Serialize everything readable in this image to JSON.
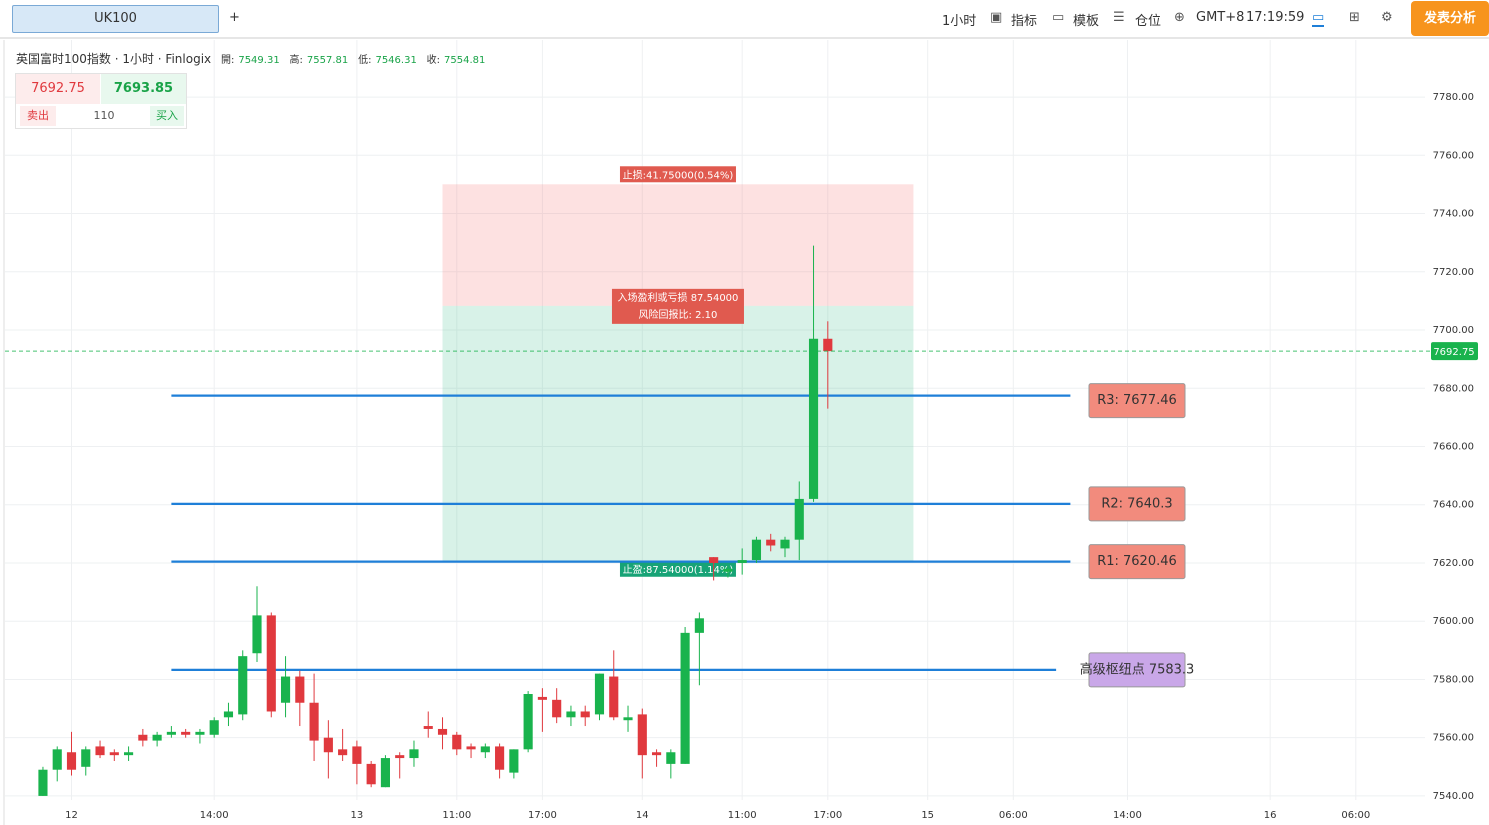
{
  "toolbar": {
    "tab": "UK100",
    "add": "+",
    "interval": "1小时",
    "indicators": "指标",
    "templates": "模板",
    "positions": "仓位",
    "timezone": "GMT+8",
    "clock": "17:19:59",
    "publish": "发表分析"
  },
  "legend": {
    "symbol": "英国富时100指数 · 1小时 · Finlogix",
    "open_label": "開:",
    "open": 7549.31,
    "high_label": "高:",
    "high": 7557.81,
    "low_label": "低:",
    "low": 7546.31,
    "close_label": "收:",
    "close": 7554.81
  },
  "trade_panel": {
    "sell_price": 7692.75,
    "buy_price": 7693.85,
    "sell": "卖出",
    "quantity": 110,
    "buy": "买入"
  },
  "chart_data": {
    "type": "candlestick",
    "x": [
      0,
      1,
      2,
      3,
      4,
      5,
      6,
      7,
      8,
      9,
      10,
      11,
      12,
      13,
      14,
      15,
      16,
      17,
      18,
      19,
      20,
      21,
      22,
      23,
      24,
      25,
      26,
      27,
      28,
      29,
      30,
      31,
      32,
      33,
      34,
      35,
      36,
      37,
      38,
      39,
      40,
      41,
      42,
      43,
      44,
      45,
      46,
      47,
      48,
      49,
      50,
      51,
      52,
      53,
      54,
      55
    ],
    "open": [
      7540,
      7549,
      7555,
      7550,
      7557,
      7555,
      7554,
      7561,
      7559,
      7561,
      7562,
      7561,
      7561,
      7567,
      7568,
      7589,
      7602,
      7572,
      7581,
      7572,
      7560,
      7556,
      7557,
      7551,
      7543,
      7554,
      7553,
      7564,
      7563,
      7561,
      7557,
      7555,
      7557,
      7548,
      7556,
      7574,
      7573,
      7567,
      7569,
      7568,
      7581,
      7566,
      7568,
      7555,
      7551,
      7551,
      7596,
      7622,
      7617,
      7620,
      7621,
      7628,
      7625,
      7628,
      7642,
      7697
    ],
    "high": [
      7550,
      7557,
      7562,
      7557,
      7559,
      7556,
      7557,
      7563,
      7562,
      7564,
      7563,
      7563,
      7567,
      7572,
      7590,
      7612,
      7603,
      7588,
      7583,
      7582,
      7566,
      7563,
      7559,
      7552,
      7554,
      7555,
      7559,
      7569,
      7567,
      7562,
      7558,
      7558,
      7558,
      7556,
      7576,
      7577,
      7577,
      7571,
      7571,
      7582,
      7590,
      7571,
      7570,
      7556,
      7556,
      7598,
      7603,
      7622,
      7619,
      7625,
      7629,
      7630,
      7629,
      7648,
      7729,
      7703
    ],
    "low": [
      7540,
      7545,
      7547,
      7547,
      7553,
      7552,
      7552,
      7557,
      7557,
      7560,
      7560,
      7558,
      7560,
      7564,
      7566,
      7586,
      7567,
      7567,
      7564,
      7552,
      7546,
      7552,
      7544,
      7543,
      7543,
      7546,
      7550,
      7560,
      7556,
      7554,
      7553,
      7553,
      7546,
      7546,
      7555,
      7562,
      7565,
      7564,
      7564,
      7566,
      7566,
      7562,
      7546,
      7550,
      7546,
      7551,
      7578,
      7614,
      7615,
      7616,
      7620,
      7624,
      7622,
      7621,
      7641,
      7673
    ],
    "close": [
      7549,
      7556,
      7549,
      7556,
      7554,
      7554,
      7555,
      7559,
      7561,
      7562,
      7561,
      7562,
      7566,
      7569,
      7588,
      7602,
      7569,
      7581,
      7572,
      7559,
      7555,
      7554,
      7551,
      7544,
      7553,
      7553,
      7556,
      7563,
      7561,
      7556,
      7556,
      7557,
      7549,
      7556,
      7575,
      7573,
      7567,
      7569,
      7567,
      7582,
      7567,
      7567,
      7554,
      7554,
      7555,
      7596,
      7601,
      7620,
      7618,
      7621,
      7628,
      7626,
      7628,
      7642,
      7697,
      7692.75
    ],
    "up_color": "#19b34d",
    "down_color": "#e0393e",
    "xlim": [
      -2.66,
      96.85
    ],
    "xticks": [
      {
        "value": 2,
        "label": "12"
      },
      {
        "value": 12,
        "label": "14:00"
      },
      {
        "value": 22,
        "label": "13"
      },
      {
        "value": 29,
        "label": "11:00"
      },
      {
        "value": 35,
        "label": "17:00"
      },
      {
        "value": 42,
        "label": "14"
      },
      {
        "value": 49,
        "label": "11:00"
      },
      {
        "value": 55,
        "label": "17:00"
      },
      {
        "value": 62,
        "label": "15"
      },
      {
        "value": 68,
        "label": "06:00"
      },
      {
        "value": 76,
        "label": "14:00"
      },
      {
        "value": 86,
        "label": "16"
      },
      {
        "value": 92,
        "label": "06:00"
      }
    ],
    "ylim": [
      7538.6,
      7799.6
    ],
    "yticks": [
      {
        "value": 7540,
        "label": "7540.00"
      },
      {
        "value": 7560,
        "label": "7560.00"
      },
      {
        "value": 7580,
        "label": "7580.00"
      },
      {
        "value": 7600,
        "label": "7600.00"
      },
      {
        "value": 7620,
        "label": "7620.00"
      },
      {
        "value": 7640,
        "label": "7640.00"
      },
      {
        "value": 7660,
        "label": "7660.00"
      },
      {
        "value": 7680,
        "label": "7680.00"
      },
      {
        "value": 7700,
        "label": "7700.00"
      },
      {
        "value": 7720,
        "label": "7720.00"
      },
      {
        "value": 7740,
        "label": "7740.00"
      },
      {
        "value": 7760,
        "label": "7760.00"
      },
      {
        "value": 7780,
        "label": "7780.00"
      }
    ],
    "grid": true,
    "last_price": {
      "value": 7692.75,
      "color": "#19b34d"
    },
    "levels": [
      {
        "label": "R3: 7677.46",
        "value": 7677.46,
        "start": 9,
        "end": 72,
        "color": "#f28b7d"
      },
      {
        "label": "R2: 7640.3",
        "value": 7640.3,
        "start": 9,
        "end": 72,
        "color": "#f28b7d"
      },
      {
        "label": "R1: 7620.46",
        "value": 7620.46,
        "start": 9,
        "end": 72,
        "color": "#f28b7d"
      },
      {
        "label": "高级枢纽点 7583.3",
        "value": 7583.3,
        "start": 9,
        "end": 71,
        "color": "#c9a7e8"
      }
    ],
    "level_line_color": "#1e7fd8",
    "position": {
      "start": 28,
      "end": 61,
      "entry": 7708.3,
      "stop": 7750.05,
      "target": 7620.76,
      "stop_label": "止损:41.75000(0.54%)",
      "pnl_label": "入场盈利或亏损 87.54000",
      "ratio_label": "风险回报比: 2.10",
      "target_label": "止盈:87.54000(1.14%)"
    }
  }
}
